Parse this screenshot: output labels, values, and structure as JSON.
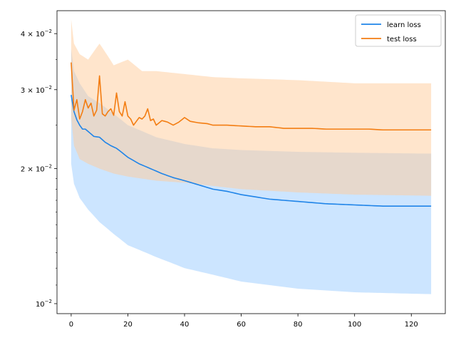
{
  "chart_data": {
    "type": "line",
    "title": "",
    "xlabel": "",
    "ylabel": "",
    "xlim": [
      -5,
      132
    ],
    "ylim": [
      0.0095,
      0.045
    ],
    "yscale": "log",
    "grid": false,
    "legend_position": "top-right",
    "x_ticks": [
      0,
      20,
      40,
      60,
      80,
      100,
      120
    ],
    "x_tick_labels": [
      "0",
      "20",
      "40",
      "60",
      "80",
      "100",
      "120"
    ],
    "y_ticks": [
      {
        "value": 0.04,
        "mantissa": "4",
        "base": "10",
        "exp": "−2"
      },
      {
        "value": 0.03,
        "mantissa": "3",
        "base": "10",
        "exp": "−2"
      },
      {
        "value": 0.02,
        "mantissa": "2",
        "base": "10",
        "exp": "−2"
      },
      {
        "value": 0.01,
        "mantissa": "",
        "base": "10",
        "exp": "−2"
      }
    ],
    "series": [
      {
        "name": "learn loss",
        "color": "#1f84e8",
        "band_color": "#99ccff",
        "knots_x": [
          0,
          1,
          2,
          3,
          4,
          5,
          6,
          8,
          10,
          12,
          14,
          16,
          18,
          20,
          24,
          28,
          32,
          36,
          40,
          45,
          50,
          55,
          60,
          65,
          70,
          80,
          90,
          100,
          110,
          120,
          127
        ],
        "knots_y": [
          0.0292,
          0.0268,
          0.0257,
          0.025,
          0.0245,
          0.0245,
          0.0242,
          0.0236,
          0.0235,
          0.0229,
          0.0225,
          0.0222,
          0.0217,
          0.0212,
          0.0205,
          0.02,
          0.0195,
          0.0191,
          0.0188,
          0.0184,
          0.018,
          0.0178,
          0.0175,
          0.0173,
          0.0171,
          0.0169,
          0.0167,
          0.0166,
          0.0165,
          0.0165,
          0.0165
        ],
        "lower_x": [
          0,
          1,
          3,
          6,
          10,
          15,
          20,
          30,
          40,
          50,
          60,
          80,
          100,
          127
        ],
        "lower_y": [
          0.0205,
          0.0185,
          0.0172,
          0.0162,
          0.0152,
          0.0143,
          0.0135,
          0.0127,
          0.012,
          0.0116,
          0.0112,
          0.0108,
          0.0106,
          0.0105
        ],
        "upper_x": [
          0,
          1,
          3,
          6,
          10,
          15,
          20,
          30,
          40,
          50,
          60,
          80,
          100,
          127
        ],
        "upper_y": [
          0.037,
          0.033,
          0.031,
          0.029,
          0.028,
          0.0265,
          0.025,
          0.0235,
          0.0227,
          0.0222,
          0.022,
          0.0218,
          0.0217,
          0.0216
        ]
      },
      {
        "name": "test loss",
        "color": "#f37d12",
        "band_color": "#ffcc99",
        "knots_x": [
          0,
          1,
          2,
          3,
          4,
          5,
          6,
          7,
          8,
          9,
          10,
          11,
          12,
          13,
          14,
          15,
          16,
          17,
          18,
          19,
          20,
          21,
          22,
          23,
          24,
          25,
          26,
          27,
          28,
          29,
          30,
          32,
          34,
          36,
          38,
          40,
          42,
          45,
          48,
          50,
          55,
          60,
          65,
          70,
          75,
          80,
          85,
          90,
          95,
          100,
          105,
          110,
          115,
          120,
          125,
          127
        ],
        "knots_y": [
          0.0345,
          0.027,
          0.0285,
          0.0258,
          0.0268,
          0.0285,
          0.0273,
          0.028,
          0.0262,
          0.027,
          0.0322,
          0.0265,
          0.0262,
          0.0268,
          0.0272,
          0.0263,
          0.0295,
          0.0268,
          0.0262,
          0.0282,
          0.0262,
          0.0258,
          0.025,
          0.0255,
          0.026,
          0.0258,
          0.0262,
          0.0272,
          0.0256,
          0.0258,
          0.025,
          0.0256,
          0.0254,
          0.025,
          0.0254,
          0.026,
          0.0255,
          0.0253,
          0.0252,
          0.025,
          0.025,
          0.0249,
          0.0248,
          0.0248,
          0.0246,
          0.0246,
          0.0246,
          0.0245,
          0.0245,
          0.0245,
          0.0245,
          0.0244,
          0.0244,
          0.0244,
          0.0244,
          0.0244
        ],
        "lower_x": [
          0,
          1,
          3,
          6,
          10,
          15,
          20,
          25,
          30,
          40,
          50,
          60,
          80,
          100,
          127
        ],
        "lower_y": [
          0.026,
          0.0225,
          0.021,
          0.0205,
          0.02,
          0.0195,
          0.0192,
          0.019,
          0.0188,
          0.0186,
          0.0183,
          0.018,
          0.0177,
          0.0175,
          0.0174
        ],
        "upper_x": [
          0,
          1,
          3,
          6,
          10,
          15,
          20,
          25,
          30,
          40,
          50,
          60,
          80,
          100,
          127
        ],
        "upper_y": [
          0.043,
          0.038,
          0.036,
          0.035,
          0.038,
          0.034,
          0.035,
          0.033,
          0.033,
          0.0325,
          0.032,
          0.0318,
          0.0315,
          0.031,
          0.031
        ]
      }
    ]
  }
}
